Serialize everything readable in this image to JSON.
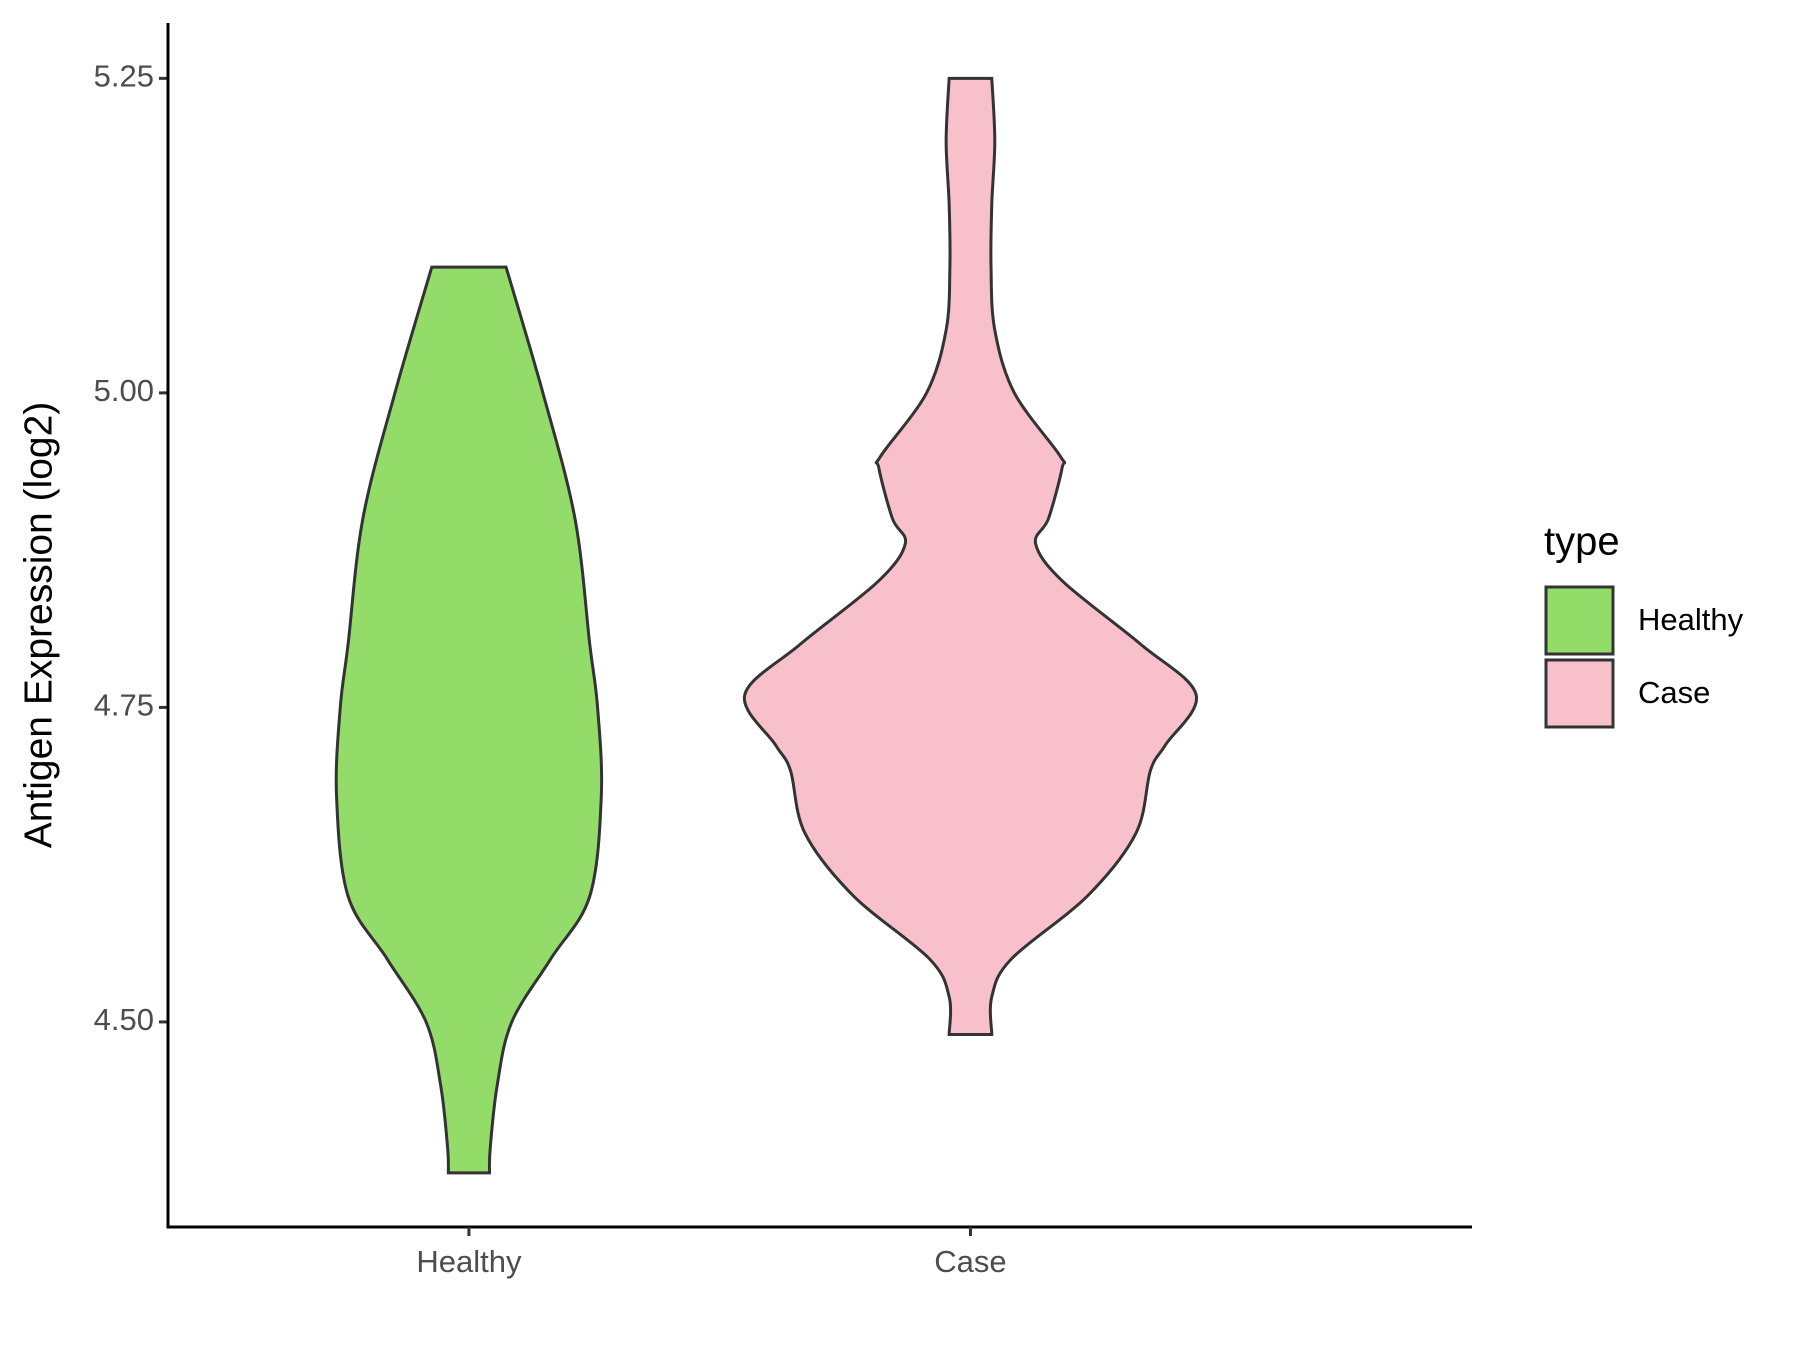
{
  "chart_data": {
    "type": "violin",
    "y_label": "Antigen Expression (log2)",
    "categories": [
      "Healthy",
      "Case"
    ],
    "legend_title": "type",
    "legend_position": "right",
    "ylim": [
      4.337,
      5.294
    ],
    "yticks": [
      {
        "value": 4.5,
        "label": "4.50"
      },
      4.75,
      {
        "value": 5,
        "label": "5.00"
      },
      5.25
    ],
    "outline_color": "#333333",
    "series": [
      {
        "name": "Healthy",
        "color": "#93dc6a",
        "y": [
          5.1,
          5.0,
          4.9,
          4.8,
          4.75,
          4.68,
          4.6,
          4.55,
          4.5,
          4.45,
          4.4,
          4.38
        ],
        "width": [
          0.148,
          0.295,
          0.423,
          0.482,
          0.513,
          0.528,
          0.482,
          0.326,
          0.171,
          0.113,
          0.085,
          0.082
        ]
      },
      {
        "name": "Case",
        "color": "#f7c0cb",
        "y": [
          5.25,
          5.2,
          5.15,
          5.1,
          5.05,
          5.0,
          4.95,
          4.94,
          4.9,
          4.88,
          4.85,
          4.8,
          4.76,
          4.72,
          4.7,
          4.65,
          4.6,
          4.55,
          4.52,
          4.49
        ],
        "width": [
          0.085,
          0.097,
          0.085,
          0.082,
          0.097,
          0.175,
          0.357,
          0.365,
          0.311,
          0.26,
          0.369,
          0.68,
          0.9,
          0.777,
          0.718,
          0.66,
          0.466,
          0.163,
          0.085,
          0.085
        ]
      }
    ]
  }
}
